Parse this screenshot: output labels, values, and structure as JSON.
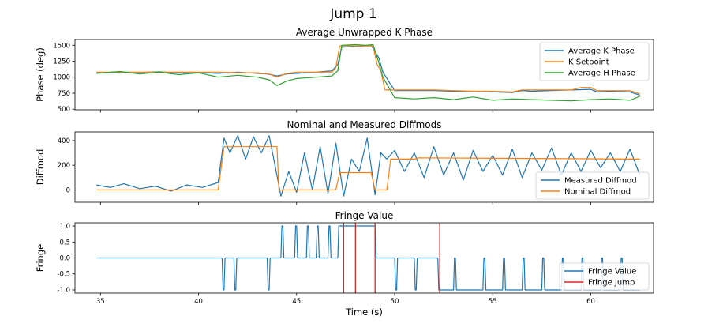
{
  "figure_title": "Jump 1",
  "chart_data": [
    {
      "type": "line",
      "title": "Average Unwrapped K Phase",
      "xlabel": "",
      "ylabel": "Phase (deg)",
      "xlim": [
        33.7,
        63.2
      ],
      "ylim": [
        490,
        1590
      ],
      "xticks": [
        35,
        40,
        45,
        50,
        55,
        60
      ],
      "yticks": [
        500,
        750,
        1000,
        1250,
        1500
      ],
      "legend_position": "top-right",
      "series": [
        {
          "name": "Average K Phase",
          "color": "#1f77b4",
          "x": [
            34.8,
            36,
            37,
            38,
            39,
            40,
            41,
            42,
            43,
            43.5,
            44,
            44.5,
            45,
            46,
            46.8,
            47.1,
            47.3,
            48,
            48.4,
            48.8,
            49.2,
            49.4,
            50,
            51,
            52,
            53,
            54,
            55,
            56,
            56.5,
            57,
            58,
            59,
            60,
            60.3,
            61,
            62,
            62.5
          ],
          "y": [
            1070,
            1080,
            1075,
            1085,
            1070,
            1075,
            1060,
            1080,
            1060,
            1050,
            1020,
            1050,
            1060,
            1080,
            1100,
            1200,
            1470,
            1480,
            1490,
            1500,
            1300,
            1080,
            790,
            790,
            790,
            780,
            780,
            770,
            760,
            790,
            780,
            790,
            800,
            810,
            770,
            780,
            770,
            720
          ]
        },
        {
          "name": "K Setpoint",
          "color": "#ff7f0e",
          "x": [
            34.8,
            36,
            38,
            40,
            41,
            42,
            43,
            43.6,
            44,
            44.5,
            45,
            46,
            46.8,
            47,
            47.2,
            48,
            48.9,
            49.1,
            49.3,
            49.5,
            50,
            52,
            53,
            54,
            55,
            56,
            56.5,
            57,
            58,
            59,
            59.5,
            60,
            60.3,
            61,
            62,
            62.5
          ],
          "y": [
            1080,
            1080,
            1080,
            1080,
            1080,
            1070,
            1070,
            1050,
            1000,
            1060,
            1080,
            1080,
            1080,
            1150,
            1490,
            1490,
            1490,
            1200,
            1100,
            800,
            800,
            800,
            790,
            780,
            780,
            770,
            800,
            800,
            800,
            800,
            840,
            840,
            790,
            790,
            790,
            740
          ]
        },
        {
          "name": "Average H Phase",
          "color": "#2ca02c",
          "x": [
            34.8,
            36,
            37,
            38,
            39,
            40,
            41,
            42,
            43,
            43.6,
            44,
            44.5,
            45,
            46,
            46.8,
            47.1,
            47.3,
            48,
            48.5,
            48.9,
            49.2,
            49.4,
            50,
            51,
            52,
            53,
            54,
            55,
            56,
            57,
            58,
            59,
            60,
            61,
            62,
            62.5
          ],
          "y": [
            1060,
            1090,
            1050,
            1080,
            1040,
            1070,
            1000,
            1030,
            1000,
            960,
            870,
            940,
            980,
            1000,
            1020,
            1100,
            1500,
            1510,
            1500,
            1510,
            1220,
            1000,
            680,
            660,
            680,
            650,
            690,
            640,
            660,
            650,
            640,
            630,
            650,
            660,
            640,
            700
          ]
        }
      ]
    },
    {
      "type": "line",
      "title": "Nominal and Measured Diffmods",
      "xlabel": "",
      "ylabel": "Diffmod",
      "xlim": [
        33.7,
        63.2
      ],
      "ylim": [
        -100,
        470
      ],
      "xticks": [
        35,
        40,
        45,
        50,
        55,
        60
      ],
      "yticks": [
        0,
        200,
        400
      ],
      "legend_position": "bottom-right",
      "series": [
        {
          "name": "Measured Diffmod",
          "color": "#1f77b4",
          "x": [
            34.8,
            35.5,
            36.2,
            37,
            37.8,
            38.6,
            39.4,
            40.2,
            41,
            41.3,
            41.6,
            42,
            42.4,
            42.8,
            43.2,
            43.6,
            43.9,
            44.2,
            44.6,
            45,
            45.4,
            45.8,
            46.2,
            46.6,
            47,
            47.4,
            47.8,
            48.2,
            48.6,
            49,
            49.3,
            49.6,
            50,
            50.5,
            51,
            51.5,
            52,
            52.5,
            53,
            53.5,
            54,
            54.5,
            55,
            55.5,
            56,
            56.5,
            57,
            57.5,
            58,
            58.5,
            59,
            59.5,
            60,
            60.5,
            61,
            61.5,
            62,
            62.5
          ],
          "y": [
            40,
            20,
            50,
            10,
            30,
            -10,
            40,
            20,
            60,
            420,
            300,
            440,
            250,
            430,
            300,
            440,
            200,
            -50,
            150,
            -20,
            300,
            0,
            350,
            -30,
            380,
            -50,
            250,
            150,
            420,
            -40,
            300,
            250,
            320,
            150,
            300,
            100,
            350,
            120,
            300,
            80,
            320,
            150,
            280,
            120,
            330,
            100,
            300,
            160,
            340,
            120,
            300,
            150,
            320,
            180,
            300,
            150,
            330,
            120
          ]
        },
        {
          "name": "Nominal Diffmod",
          "color": "#ff7f0e",
          "x": [
            34.8,
            41,
            41.3,
            44,
            44.1,
            47,
            47.2,
            48.8,
            49,
            49.6,
            49.8,
            51,
            51.2,
            62.5
          ],
          "y": [
            0,
            0,
            350,
            350,
            0,
            0,
            140,
            140,
            0,
            0,
            250,
            250,
            260,
            250
          ]
        }
      ]
    },
    {
      "type": "line",
      "title": "Fringe Value",
      "xlabel": "Time (s)",
      "ylabel": "Fringe",
      "xlim": [
        33.7,
        63.2
      ],
      "ylim": [
        -1.1,
        1.1
      ],
      "xticks": [
        35,
        40,
        45,
        50,
        55,
        60
      ],
      "yticks": [
        -1.0,
        -0.5,
        0.0,
        0.5,
        1.0
      ],
      "legend_position": "bottom-right",
      "series": [
        {
          "name": "Fringe Value",
          "color": "#1f77b4",
          "x": [
            34.8,
            41.2,
            41.25,
            41.3,
            41.35,
            41.8,
            41.85,
            41.9,
            41.95,
            43.5,
            43.55,
            43.6,
            43.65,
            44.2,
            44.25,
            44.3,
            44.35,
            44.9,
            44.95,
            45,
            45.05,
            45.5,
            45.55,
            45.6,
            45.65,
            46,
            46.05,
            46.1,
            46.15,
            46.6,
            46.65,
            46.7,
            46.75,
            47.1,
            47.15,
            47.2,
            47.25,
            49,
            49.05,
            49.1,
            49.15,
            50,
            50.05,
            50.1,
            50.15,
            51,
            51.05,
            51.1,
            51.15,
            52.2,
            52.25,
            53,
            53.05,
            53.1,
            53.15,
            54.5,
            54.55,
            54.6,
            54.65,
            55.5,
            55.55,
            55.6,
            55.65,
            56.5,
            56.55,
            56.6,
            56.65,
            57.5,
            57.55,
            57.6,
            57.65,
            58.5,
            58.55,
            58.6,
            58.65,
            59.5,
            59.55,
            59.6,
            59.65,
            60.5,
            60.55,
            60.6,
            60.65,
            61.5,
            61.55,
            61.6,
            61.65,
            62.5
          ],
          "y": [
            0,
            0,
            -1,
            -1,
            0,
            0,
            -1,
            -1,
            0,
            0,
            -1,
            -1,
            0,
            0,
            1,
            1,
            0,
            0,
            1,
            1,
            0,
            0,
            1,
            1,
            0,
            0,
            1,
            1,
            0,
            0,
            1,
            1,
            0,
            0,
            1,
            1,
            1,
            1,
            0,
            0,
            0,
            0,
            -1,
            -1,
            0,
            0,
            -1,
            -1,
            0,
            0,
            -1,
            -1,
            0,
            0,
            -1,
            -1,
            0,
            0,
            -1,
            -1,
            0,
            0,
            -1,
            -1,
            0,
            0,
            -1,
            -1,
            0,
            0,
            -1,
            -1,
            0,
            0,
            -1,
            -1,
            0,
            0,
            -1,
            -1,
            0,
            0,
            -1,
            -1,
            0,
            0,
            -1,
            -1
          ]
        },
        {
          "name": "Fringe Jump",
          "color": "#d62728",
          "type": "vlines",
          "x": [
            47.4,
            48.0,
            49.0,
            52.3
          ]
        }
      ]
    }
  ]
}
